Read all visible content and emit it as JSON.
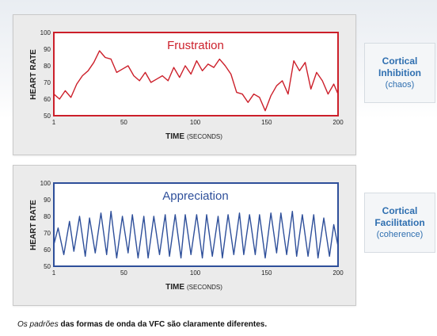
{
  "chart_data": [
    {
      "type": "line",
      "title": "Frustration",
      "xlabel_main": "TIME",
      "xlabel_unit": "(SECONDS)",
      "ylabel": "HEART RATE",
      "xlim": [
        1,
        200
      ],
      "ylim": [
        50,
        100
      ],
      "x_ticks": [
        "1",
        "50",
        "100",
        "150",
        "200"
      ],
      "y_ticks": [
        "100",
        "90",
        "80",
        "70",
        "60",
        "50"
      ],
      "color": "#cc1f2a",
      "side_label": {
        "title_lines": [
          "Cortical",
          "Inhibition"
        ],
        "sub": "(chaos)"
      },
      "series": [
        {
          "x": [
            1,
            5,
            9,
            13,
            17,
            21,
            25,
            29,
            33,
            37,
            41,
            45,
            49,
            53,
            57,
            61,
            65,
            69,
            73,
            77,
            81,
            85,
            89,
            93,
            97,
            101,
            105,
            109,
            113,
            117,
            121,
            125,
            129,
            133,
            137,
            141,
            145,
            149,
            153,
            157,
            161,
            165,
            169,
            173,
            177,
            181,
            185,
            189,
            193,
            197,
            200
          ],
          "values": [
            63,
            60,
            65,
            61,
            69,
            74,
            77,
            82,
            89,
            85,
            84,
            76,
            78,
            80,
            74,
            71,
            76,
            70,
            72,
            74,
            71,
            79,
            73,
            80,
            75,
            83,
            77,
            81,
            79,
            84,
            80,
            75,
            64,
            63,
            58,
            63,
            61,
            53,
            62,
            68,
            71,
            63,
            83,
            77,
            82,
            66,
            76,
            71,
            63,
            69,
            63
          ]
        }
      ]
    },
    {
      "type": "line",
      "title": "Appreciation",
      "xlabel_main": "TIME",
      "xlabel_unit": "(SECONDS)",
      "ylabel": "HEART RATE",
      "xlim": [
        1,
        200
      ],
      "ylim": [
        50,
        100
      ],
      "x_ticks": [
        "1",
        "50",
        "100",
        "150",
        "200"
      ],
      "y_ticks": [
        "100",
        "90",
        "80",
        "70",
        "60",
        "50"
      ],
      "color": "#2e4f9a",
      "side_label": {
        "title_lines": [
          "Cortical",
          "Facilitation"
        ],
        "sub": "(coherence)"
      },
      "series": [
        {
          "x": [
            1,
            4,
            8,
            12,
            15,
            19,
            23,
            26,
            30,
            34,
            38,
            41,
            45,
            49,
            53,
            56,
            60,
            64,
            67,
            71,
            75,
            79,
            82,
            86,
            90,
            93,
            97,
            101,
            105,
            108,
            112,
            116,
            119,
            123,
            127,
            131,
            134,
            138,
            142,
            145,
            149,
            153,
            157,
            160,
            164,
            168,
            171,
            175,
            179,
            183,
            186,
            190,
            194,
            197,
            200
          ],
          "values": [
            63,
            73,
            57,
            77,
            59,
            80,
            56,
            79,
            58,
            82,
            57,
            83,
            55,
            80,
            58,
            81,
            55,
            80,
            55,
            80,
            57,
            81,
            56,
            81,
            55,
            81,
            57,
            81,
            55,
            81,
            56,
            80,
            55,
            81,
            57,
            82,
            57,
            81,
            57,
            81,
            55,
            82,
            58,
            82,
            57,
            83,
            56,
            81,
            56,
            81,
            55,
            79,
            56,
            75,
            62
          ]
        }
      ]
    }
  ],
  "caption": {
    "emphasis": "Os padrões",
    "rest": " das formas de onda da VFC são claramente diferentes."
  }
}
